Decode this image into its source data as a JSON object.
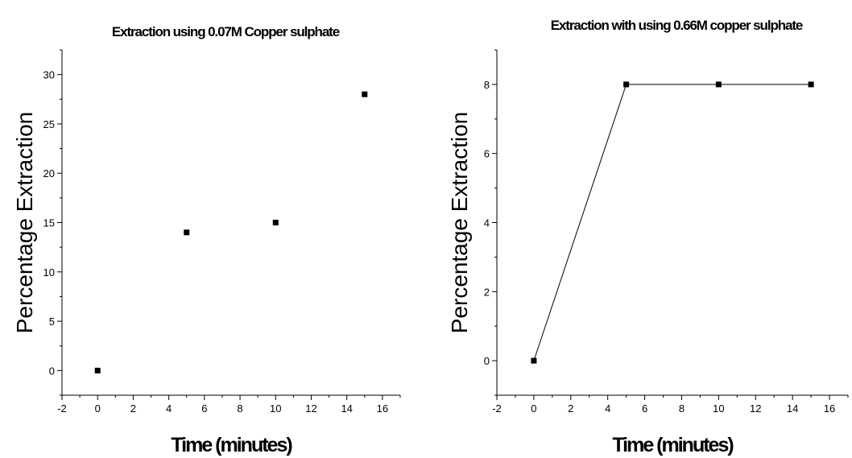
{
  "chart_data": [
    {
      "type": "scatter",
      "title": "Extraction using 0.07M Copper sulphate",
      "xlabel": "Time (minutes)",
      "ylabel": "Percentage Extraction",
      "xlim": [
        -2,
        17
      ],
      "ylim": [
        -2.5,
        32.5
      ],
      "xticks": [
        -2,
        0,
        2,
        4,
        6,
        8,
        10,
        12,
        14,
        16
      ],
      "yticks": [
        0,
        5,
        10,
        15,
        20,
        25,
        30
      ],
      "connected": false,
      "grid": false,
      "series": [
        {
          "x": [
            0,
            5,
            10,
            15
          ],
          "y": [
            0,
            14,
            15,
            28
          ]
        }
      ]
    },
    {
      "type": "line",
      "title": "Extraction with using 0.66M copper sulphate",
      "xlabel": "Time (minutes)",
      "ylabel": "Percentage Extraction",
      "xlim": [
        -2,
        17
      ],
      "ylim": [
        -1,
        9
      ],
      "xticks": [
        -2,
        0,
        2,
        4,
        6,
        8,
        10,
        12,
        14,
        16
      ],
      "yticks": [
        0,
        2,
        4,
        6,
        8
      ],
      "connected": true,
      "grid": false,
      "series": [
        {
          "x": [
            0,
            5,
            10,
            15
          ],
          "y": [
            0,
            8,
            8,
            8
          ]
        }
      ]
    }
  ]
}
